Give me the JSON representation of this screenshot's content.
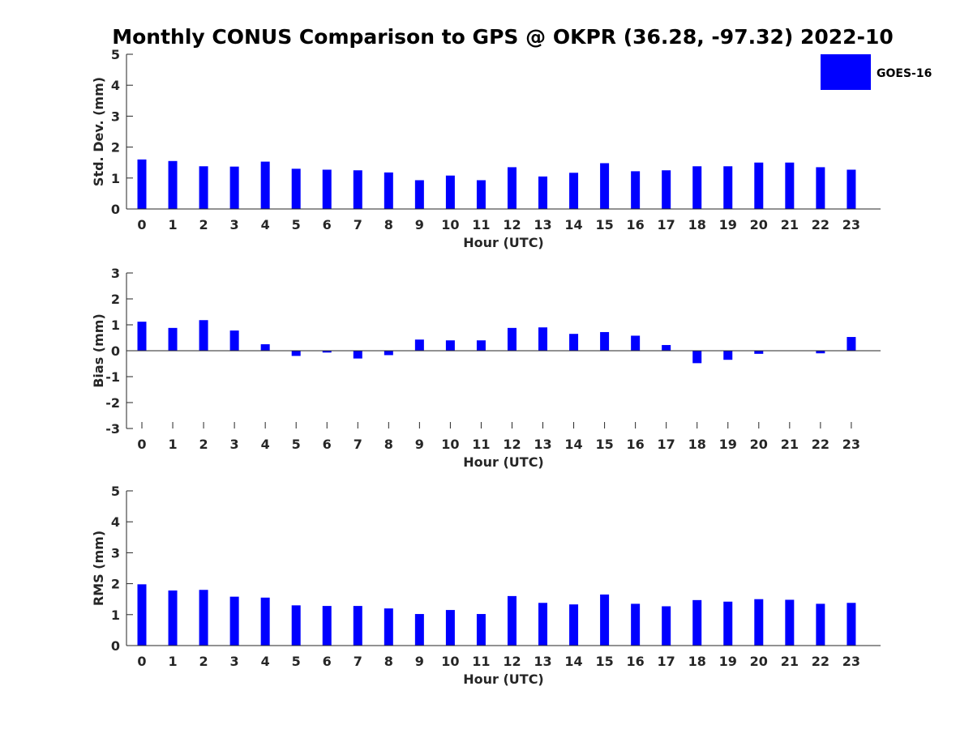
{
  "chart_data": {
    "title": "Monthly CONUS Comparison to GPS @ OKPR (36.28, -97.32) 2022-10",
    "legend": {
      "label": "GOES-16",
      "color": "#0000ff",
      "placement": "top-right"
    },
    "panels": [
      {
        "type": "bar",
        "id": "std",
        "categories": [
          "0",
          "1",
          "2",
          "3",
          "4",
          "5",
          "6",
          "7",
          "8",
          "9",
          "10",
          "11",
          "12",
          "13",
          "14",
          "15",
          "16",
          "17",
          "18",
          "19",
          "20",
          "21",
          "22",
          "23"
        ],
        "series": [
          {
            "name": "GOES-16",
            "values": [
              1.6,
              1.55,
              1.38,
              1.37,
              1.53,
              1.3,
              1.27,
              1.25,
              1.18,
              0.93,
              1.08,
              0.93,
              1.35,
              1.05,
              1.17,
              1.48,
              1.22,
              1.25,
              1.38,
              1.38,
              1.5,
              1.5,
              1.35,
              1.27
            ]
          }
        ],
        "xlabel": "Hour (UTC)",
        "ylabel": "Std. Dev. (mm)",
        "ylim": [
          0,
          5
        ],
        "yticks": [
          "0",
          "1",
          "2",
          "3",
          "4",
          "5"
        ],
        "grid": false
      },
      {
        "type": "bar",
        "id": "bias",
        "categories": [
          "0",
          "1",
          "2",
          "3",
          "4",
          "5",
          "6",
          "7",
          "8",
          "9",
          "10",
          "11",
          "12",
          "13",
          "14",
          "15",
          "16",
          "17",
          "18",
          "19",
          "20",
          "21",
          "22",
          "23"
        ],
        "series": [
          {
            "name": "GOES-16",
            "values": [
              1.12,
              0.88,
              1.18,
              0.78,
              0.25,
              -0.2,
              -0.07,
              -0.3,
              -0.17,
              0.43,
              0.4,
              0.4,
              0.88,
              0.9,
              0.65,
              0.72,
              0.58,
              0.22,
              -0.48,
              -0.35,
              -0.12,
              0.0,
              -0.1,
              0.53
            ]
          }
        ],
        "xlabel": "Hour (UTC)",
        "ylabel": "Bias (mm)",
        "ylim": [
          -3,
          3
        ],
        "yticks": [
          "-3",
          "-2",
          "-1",
          "0",
          "1",
          "2",
          "3"
        ],
        "grid": false
      },
      {
        "type": "bar",
        "id": "rms",
        "categories": [
          "0",
          "1",
          "2",
          "3",
          "4",
          "5",
          "6",
          "7",
          "8",
          "9",
          "10",
          "11",
          "12",
          "13",
          "14",
          "15",
          "16",
          "17",
          "18",
          "19",
          "20",
          "21",
          "22",
          "23"
        ],
        "series": [
          {
            "name": "GOES-16",
            "values": [
              1.98,
              1.78,
              1.8,
              1.58,
              1.55,
              1.3,
              1.28,
              1.28,
              1.2,
              1.02,
              1.15,
              1.02,
              1.6,
              1.38,
              1.33,
              1.65,
              1.35,
              1.27,
              1.47,
              1.42,
              1.5,
              1.48,
              1.35,
              1.38
            ]
          }
        ],
        "xlabel": "Hour (UTC)",
        "ylabel": "RMS (mm)",
        "ylim": [
          0,
          5
        ],
        "yticks": [
          "0",
          "1",
          "2",
          "3",
          "4",
          "5"
        ],
        "grid": false
      }
    ]
  }
}
